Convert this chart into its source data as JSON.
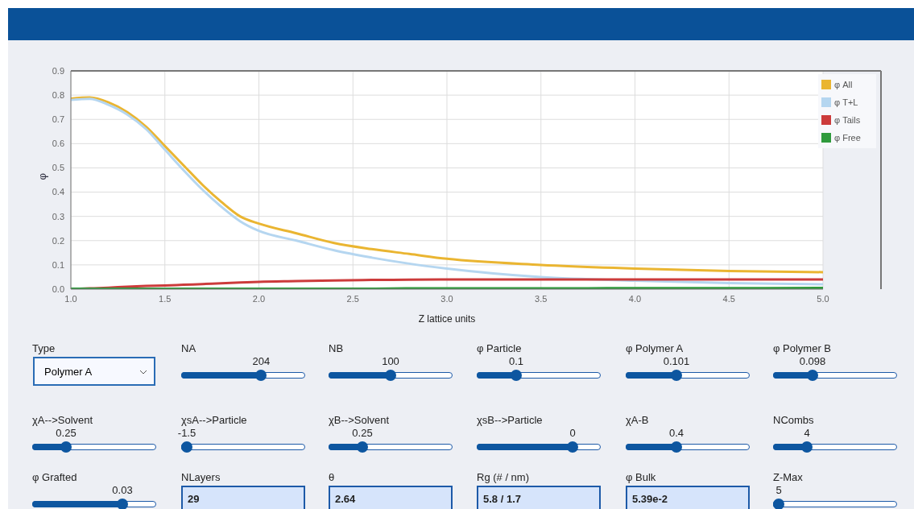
{
  "chart_data": {
    "type": "line",
    "xlabel": "Z lattice units",
    "ylabel": "φ",
    "x": [
      1.0,
      1.1,
      1.2,
      1.3,
      1.4,
      1.5,
      1.6,
      1.7,
      1.8,
      1.9,
      2.0,
      2.2,
      2.4,
      2.6,
      2.8,
      3.0,
      3.5,
      4.0,
      4.5,
      5.0
    ],
    "series": [
      {
        "name": "φ All",
        "color": "#eab531",
        "values": [
          0.785,
          0.79,
          0.77,
          0.73,
          0.67,
          0.59,
          0.51,
          0.43,
          0.36,
          0.3,
          0.27,
          0.23,
          0.19,
          0.165,
          0.145,
          0.125,
          0.1,
          0.085,
          0.075,
          0.07
        ]
      },
      {
        "name": "φ T+L",
        "color": "#b5d6f0",
        "values": [
          0.78,
          0.785,
          0.76,
          0.72,
          0.66,
          0.575,
          0.49,
          0.41,
          0.34,
          0.28,
          0.24,
          0.2,
          0.16,
          0.13,
          0.105,
          0.085,
          0.05,
          0.035,
          0.025,
          0.02
        ]
      },
      {
        "name": "φ Tails",
        "color": "#cc3b3b",
        "values": [
          0,
          0.003,
          0.006,
          0.01,
          0.013,
          0.015,
          0.018,
          0.021,
          0.024,
          0.027,
          0.03,
          0.033,
          0.036,
          0.038,
          0.039,
          0.04,
          0.04,
          0.04,
          0.04,
          0.04
        ]
      },
      {
        "name": "φ Free",
        "color": "#2f9a3c",
        "values": [
          0.002,
          0.002,
          0.002,
          0.002,
          0.002,
          0.002,
          0.002,
          0.002,
          0.002,
          0.002,
          0.002,
          0.002,
          0.002,
          0.002,
          0.003,
          0.003,
          0.003,
          0.004,
          0.004,
          0.005
        ]
      }
    ],
    "xlim": [
      1,
      5
    ],
    "xticks": [
      {
        "value": 1,
        "label": "1.0"
      },
      1.5,
      {
        "value": 2,
        "label": "2.0"
      },
      2.5,
      {
        "value": 3,
        "label": "3.0"
      },
      3.5,
      {
        "value": 4,
        "label": "4.0"
      },
      4.5,
      {
        "value": 5,
        "label": "5.0"
      }
    ],
    "ylim": [
      0,
      0.9
    ],
    "yticks": [
      {
        "value": 0,
        "label": "0.0"
      },
      0.1,
      0.2,
      0.3,
      0.4,
      0.5,
      0.6,
      0.7,
      0.8,
      0.9
    ],
    "grid": true,
    "legend": "top right",
    "marker": "none",
    "line_style": "solid",
    "annotations": [
      "Type",
      "Polymer A",
      "NA",
      "204",
      "NB",
      "100",
      "φ Particle",
      "0.1",
      "φ Polymer A",
      "0.101",
      "φ Polymer B",
      "0.098",
      "χA-->Solvent",
      "0.25",
      "χsA-->Particle",
      "-1.5",
      "χB-->Solvent",
      "0.25",
      "χsB-->Particle",
      "0",
      "χA-B",
      "0.4",
      "NCombs",
      "4",
      "φ Grafted",
      "0.03",
      "NLayers",
      "29",
      "θ",
      "2.64",
      "Rg (# / nm)",
      "5.8 / 1.7",
      "φ Bulk",
      "5.39e-2",
      "Z-Max",
      "5"
    ]
  }
}
